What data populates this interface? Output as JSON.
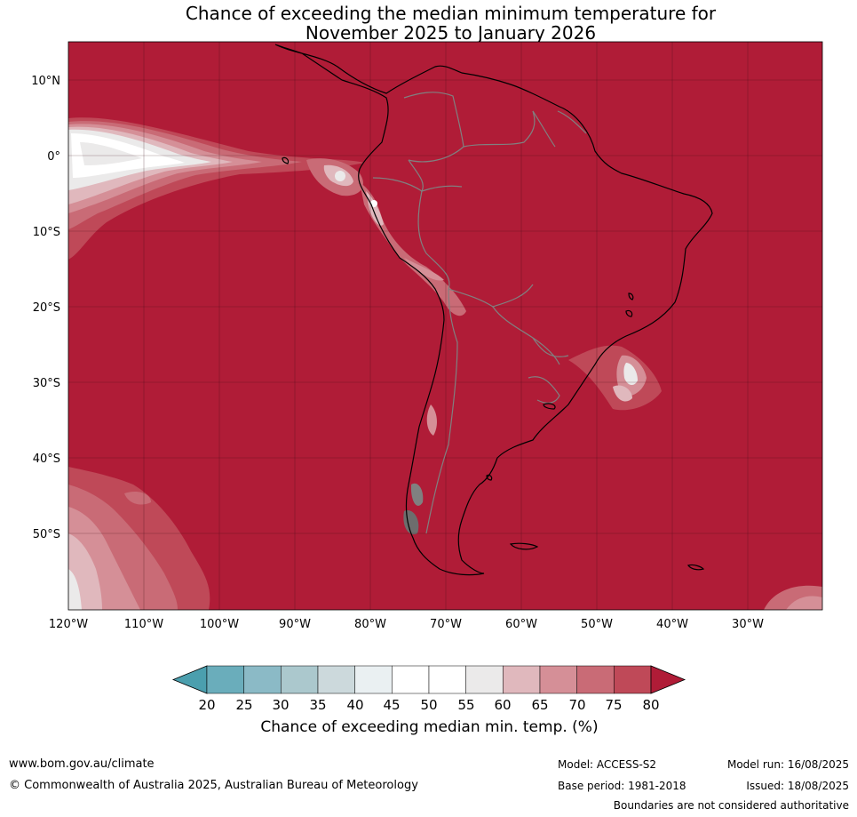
{
  "title": {
    "line1": "Chance of exceeding the median minimum temperature for",
    "line2": "November 2025 to January 2026"
  },
  "map": {
    "lat_labels": [
      "10°N",
      "0°",
      "10°S",
      "20°S",
      "30°S",
      "40°S",
      "50°S"
    ],
    "lon_labels": [
      "120°W",
      "110°W",
      "100°W",
      "90°W",
      "80°W",
      "70°W",
      "60°W",
      "50°W",
      "40°W",
      "30°W"
    ],
    "dominant_color": "#b01c37",
    "land_outline_color": "#000000",
    "border_color": "#808080"
  },
  "colorbar": {
    "title": "Chance of exceeding median min. temp. (%)",
    "ticks": [
      "20",
      "25",
      "30",
      "35",
      "40",
      "45",
      "50",
      "55",
      "60",
      "65",
      "70",
      "75",
      "80"
    ],
    "colors": [
      "#4b9fae",
      "#6aadbb",
      "#8bbac6",
      "#abc8cd",
      "#ccd9dc",
      "#eaf0f2",
      "#ffffff",
      "#ffffff",
      "#ebeaea",
      "#e0b8bd",
      "#d58f97",
      "#c96b76",
      "#bf4958",
      "#b01c37"
    ]
  },
  "footer": {
    "website": "www.bom.gov.au/climate",
    "copyright": "© Commonwealth of Australia 2025, Australian Bureau of Meteorology",
    "model": "Model: ACCESS-S2",
    "base_period": "Base period: 1981-2018",
    "model_run": "Model run: 16/08/2025",
    "issued": "Issued: 18/08/2025",
    "disclaimer": "Boundaries are not considered authoritative"
  }
}
